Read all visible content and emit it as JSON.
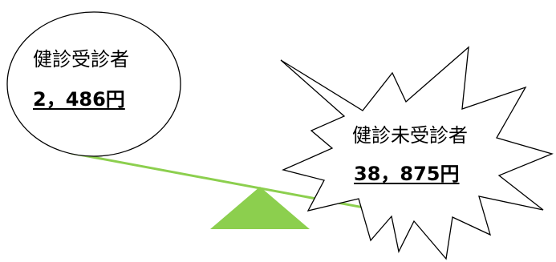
{
  "examined": {
    "heading": "健診受診者",
    "amount": "2，486円"
  },
  "unexamined": {
    "heading": "健診未受診者",
    "amount": "38，875円"
  },
  "colors": {
    "balance_green": "#8ccf4e",
    "outline": "#000000",
    "fill": "#ffffff"
  }
}
